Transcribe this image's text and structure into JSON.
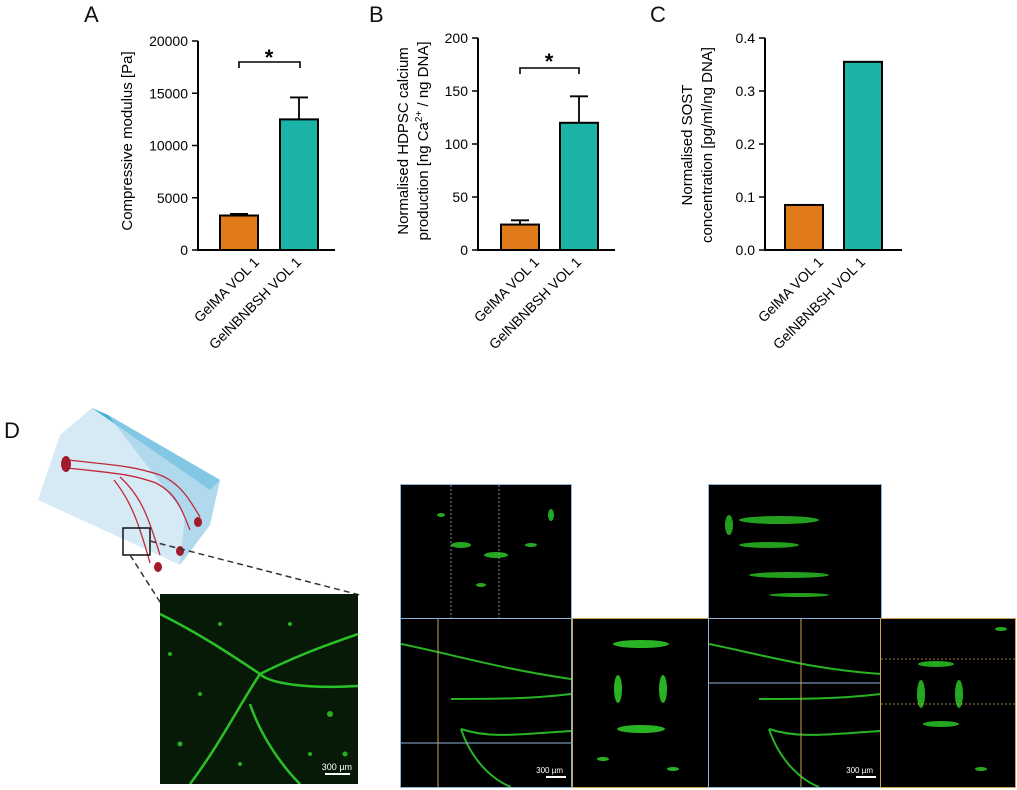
{
  "panels": {
    "a": "A",
    "b": "B",
    "c": "C",
    "d": "D"
  },
  "colors": {
    "gelma": "#e07a1a",
    "gelnb": "#1bb3a6",
    "fluor": "#2fd32a",
    "sideBorder": "#c9a25a",
    "topBorder": "#8fb4d8"
  },
  "scale_label": "300 µm",
  "chart_data": [
    {
      "type": "bar",
      "ylabel": "Compressive modulus [Pa]",
      "ylim": [
        0,
        20000
      ],
      "yticks": [
        0,
        5000,
        10000,
        15000,
        20000
      ],
      "ytick_labels": [
        "0",
        "5000",
        "10000",
        "15000",
        "20000"
      ],
      "categories": [
        "GelMA VOL 1",
        "GelNBNBSH VOL 1"
      ],
      "values": [
        3300,
        12500
      ],
      "errors": [
        150,
        2100
      ],
      "significance": "*"
    },
    {
      "type": "bar",
      "ylabel_line1": "Normalised HDPSC calcium",
      "ylabel_line2": "production [ng Ca2+ / ng DNA]",
      "ylim": [
        0,
        200
      ],
      "yticks": [
        0,
        50,
        100,
        150,
        200
      ],
      "ytick_labels": [
        "0",
        "50",
        "100",
        "150",
        "200"
      ],
      "categories": [
        "GelMA VOL 1",
        "GelNBNBSH VOL 1"
      ],
      "values": [
        24,
        120
      ],
      "errors": [
        4,
        25
      ],
      "significance": "*"
    },
    {
      "type": "bar",
      "ylabel_line1": "Normalised SOST",
      "ylabel_line2": "concentration [pg/ml/ng DNA]",
      "ylim": [
        0,
        0.4
      ],
      "yticks": [
        0,
        0.1,
        0.2,
        0.3,
        0.4
      ],
      "ytick_labels": [
        "0.0",
        "0.1",
        "0.2",
        "0.3",
        "0.4"
      ],
      "categories": [
        "GelMA VOL 1",
        "GelNBNBSH VOL 1"
      ],
      "values": [
        0.085,
        0.355
      ],
      "errors": [
        0,
        0
      ]
    }
  ]
}
